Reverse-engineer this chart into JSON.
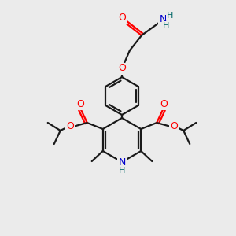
{
  "background_color": "#ebebeb",
  "bond_color": "#1a1a1a",
  "oxygen_color": "#ff0000",
  "nitrogen_color": "#0000cc",
  "hydrogen_color": "#006666",
  "line_width": 1.6,
  "figsize": [
    3.0,
    3.0
  ],
  "dpi": 100,
  "xlim": [
    0,
    300
  ],
  "ylim": [
    0,
    300
  ]
}
